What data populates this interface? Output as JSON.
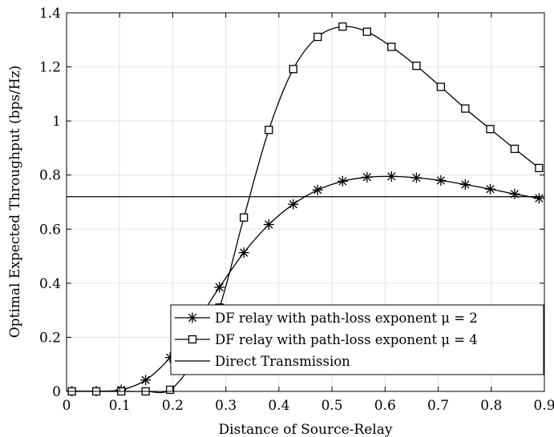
{
  "chart_data": {
    "type": "line",
    "xlabel": "Distance of Source-Relay",
    "ylabel": "Optimal Expected Throughput (bps/Hz)",
    "xlim": [
      0,
      0.9
    ],
    "ylim": [
      0,
      1.4
    ],
    "x_ticks": [
      0,
      0.1,
      0.2,
      0.3,
      0.4,
      0.5,
      0.6,
      0.7,
      0.8,
      0.9
    ],
    "x_tick_labels": [
      "0",
      "0.1",
      "0.2",
      "0.3",
      "0.4",
      "0.5",
      "0.6",
      "0.7",
      "0.8",
      "0.9"
    ],
    "y_ticks": [
      0,
      0.2,
      0.4,
      0.6,
      0.8,
      1.0,
      1.2,
      1.4
    ],
    "y_tick_labels": [
      "0",
      "0.2",
      "0.4",
      "0.6",
      "0.8",
      "1",
      "1.2",
      "1.4"
    ],
    "grid": true,
    "legend_position": "bottom-right",
    "line_color": "#000000",
    "x": [
      0.01,
      0.0546,
      0.0991,
      0.1437,
      0.1883,
      0.2329,
      0.2774,
      0.322,
      0.3666,
      0.4111,
      0.4557,
      0.5003,
      0.5449,
      0.5894,
      0.634,
      0.6786,
      0.7231,
      0.7677,
      0.8123,
      0.8569,
      0.9
    ],
    "series": [
      {
        "name": "DF relay with path-loss exponent μ = 2",
        "marker": "asterisk",
        "x": [
          0.01,
          0.056,
          0.103,
          0.149,
          0.195,
          0.242,
          0.288,
          0.334,
          0.381,
          0.427,
          0.473,
          0.52,
          0.566,
          0.612,
          0.659,
          0.705,
          0.751,
          0.798,
          0.844,
          0.89
        ],
        "values": [
          0.001,
          0.001,
          0.006,
          0.042,
          0.125,
          0.248,
          0.385,
          0.513,
          0.617,
          0.692,
          0.745,
          0.777,
          0.792,
          0.795,
          0.79,
          0.78,
          0.765,
          0.748,
          0.73,
          0.714
        ]
      },
      {
        "name": "DF relay with path-loss exponent μ = 4",
        "marker": "square",
        "x": [
          0.01,
          0.056,
          0.103,
          0.149,
          0.195,
          0.242,
          0.288,
          0.334,
          0.381,
          0.427,
          0.473,
          0.52,
          0.566,
          0.612,
          0.659,
          0.705,
          0.751,
          0.798,
          0.844,
          0.89
        ],
        "values": [
          0.0,
          0.0,
          0.0,
          0.0,
          0.006,
          0.12,
          0.31,
          0.643,
          0.967,
          1.192,
          1.311,
          1.349,
          1.33,
          1.274,
          1.204,
          1.126,
          1.046,
          0.97,
          0.897,
          0.826
        ]
      },
      {
        "name": "Direct Transmission",
        "marker": "none",
        "x": [
          0,
          0.9
        ],
        "values": [
          0.72,
          0.72
        ]
      }
    ]
  }
}
